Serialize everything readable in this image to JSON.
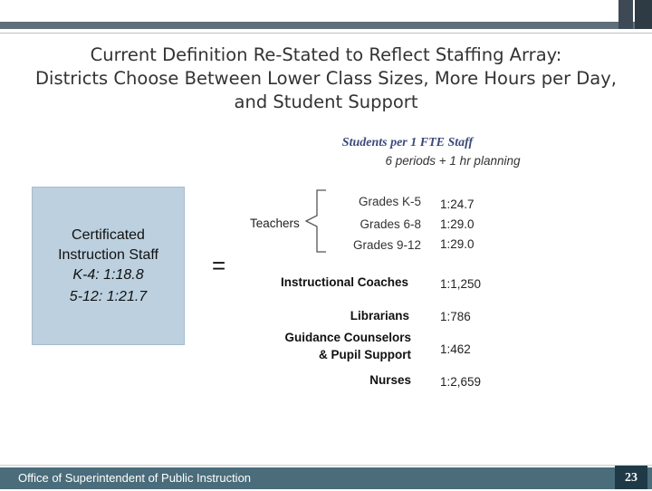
{
  "slide": {
    "title": "Current Definition Re-Stated to Reflect Staffing Array:\nDistricts Choose Between Lower Class Sizes, More Hours per Day,\nand Student Support",
    "subhead": "Students per 1 FTE Staff",
    "subhead2": "6 periods + 1 hr planning"
  },
  "certificated": {
    "title": "Certificated\nInstruction Staff",
    "ratio_k4": "K-4:  1:18.8",
    "ratio_512": "5-12: 1:21.7"
  },
  "equals": "=",
  "teacher_label": "Teachers",
  "grades": [
    {
      "label": "Grades K-5",
      "ratio": "1:24.7"
    },
    {
      "label": "Grades 6-8",
      "ratio": "1:29.0"
    },
    {
      "label": "Grades 9-12",
      "ratio": "1:29.0"
    }
  ],
  "roles": [
    {
      "label": "Instructional Coaches",
      "ratio": "1:1,250"
    },
    {
      "label": "Librarians",
      "ratio": "1:786"
    },
    {
      "label": "Guidance Counselors\n& Pupil Support",
      "ratio": "1:462"
    },
    {
      "label": "Nurses",
      "ratio": "1:2,659"
    }
  ],
  "footer": {
    "org": "Office of Superintendent of Public Instruction",
    "page": "23"
  },
  "colors": {
    "header_band": "#5f6f7a",
    "box_fill": "#bcd0df",
    "footer_bar": "#4a6c7b",
    "page_badge": "#1f3947",
    "subhead": "#3b4a7a"
  }
}
